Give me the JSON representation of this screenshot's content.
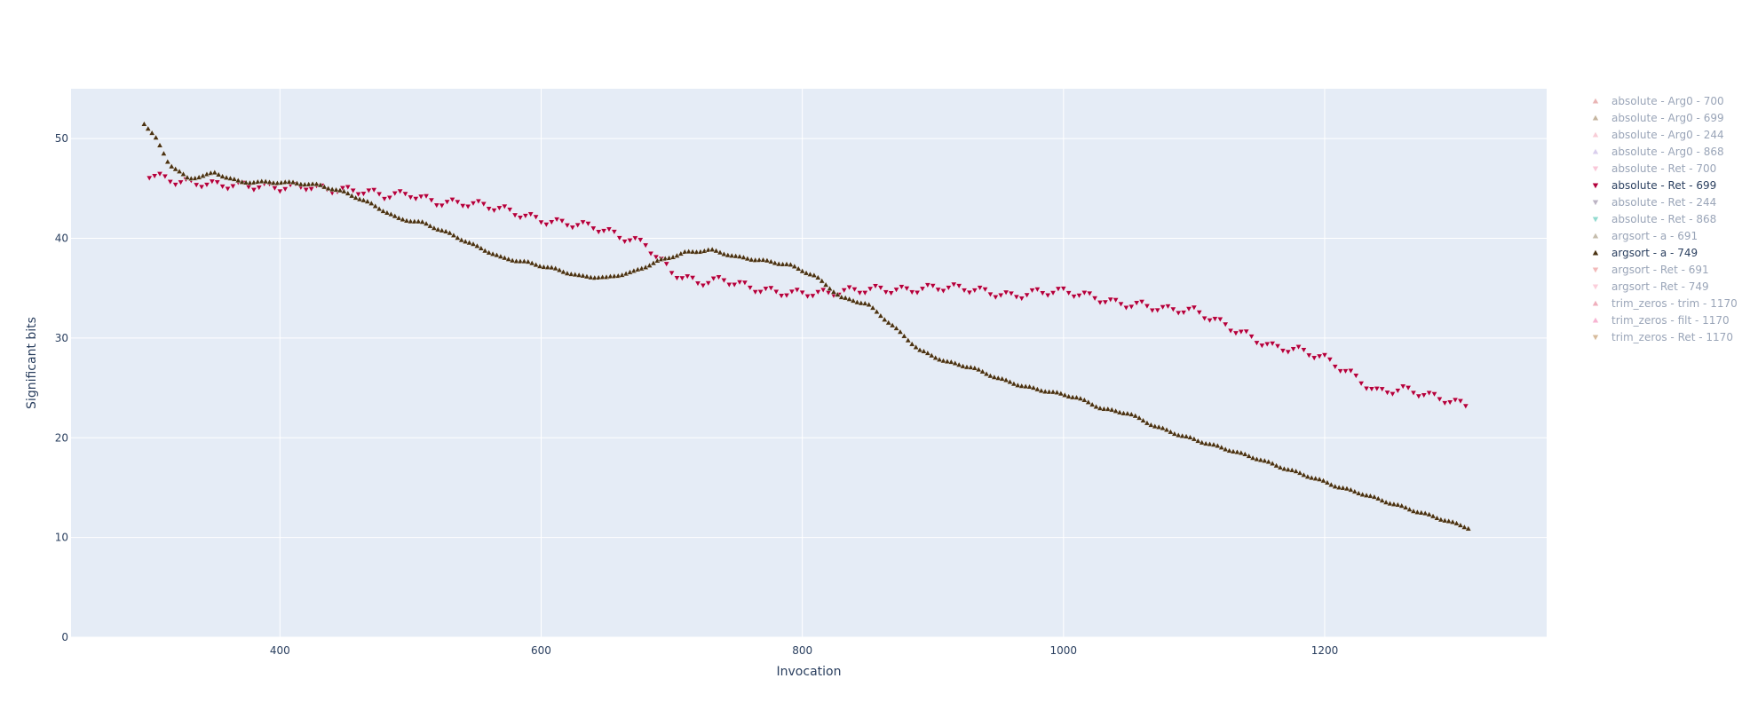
{
  "chart_data": {
    "type": "scatter",
    "xlabel": "Invocation",
    "ylabel": "Significant bits",
    "xlim": [
      240,
      1370
    ],
    "ylim": [
      0,
      55
    ],
    "xticks": [
      400,
      600,
      800,
      1000,
      1200
    ],
    "yticks": [
      0,
      10,
      20,
      30,
      40,
      50
    ],
    "grid": true,
    "plot_bg": "#E5ECF6",
    "legend_position": "right",
    "legend": [
      {
        "name": "absolute - Arg0 - 700",
        "symbol": "up",
        "color": "#d46a6a",
        "visible": false
      },
      {
        "name": "absolute - Arg0 - 699",
        "symbol": "up",
        "color": "#8c6b3f",
        "visible": false
      },
      {
        "name": "absolute - Arg0 - 244",
        "symbol": "up",
        "color": "#f29bb0",
        "visible": false
      },
      {
        "name": "absolute - Arg0 - 868",
        "symbol": "up",
        "color": "#b39ddb",
        "visible": false
      },
      {
        "name": "absolute - Ret - 700",
        "symbol": "down",
        "color": "#f48fb1",
        "visible": false
      },
      {
        "name": "absolute - Ret - 699",
        "symbol": "down",
        "color": "#b3003c",
        "visible": true
      },
      {
        "name": "absolute - Ret - 244",
        "symbol": "down",
        "color": "#7a6a8a",
        "visible": false
      },
      {
        "name": "absolute - Ret - 868",
        "symbol": "down",
        "color": "#26b5a0",
        "visible": false
      },
      {
        "name": "argsort - a - 691",
        "symbol": "up",
        "color": "#8c7a5a",
        "visible": false
      },
      {
        "name": "argsort - a - 749",
        "symbol": "up",
        "color": "#4a3212",
        "visible": true
      },
      {
        "name": "argsort - Ret - 691",
        "symbol": "down",
        "color": "#e57373",
        "visible": false
      },
      {
        "name": "argsort - Ret - 749",
        "symbol": "down",
        "color": "#f8a0b8",
        "visible": false
      },
      {
        "name": "trim_zeros - trim - 1170",
        "symbol": "up",
        "color": "#e0607a",
        "visible": false
      },
      {
        "name": "trim_zeros - filt - 1170",
        "symbol": "up",
        "color": "#f06aa6",
        "visible": false
      },
      {
        "name": "trim_zeros - Ret - 1170",
        "symbol": "down",
        "color": "#b07838",
        "visible": false
      }
    ],
    "series": [
      {
        "name": "absolute - Ret - 699",
        "symbol": "down",
        "color": "#b3003c",
        "x_start": 300,
        "x_end": 1310,
        "x_step": 4,
        "anchors_x": [
          300,
          320,
          340,
          360,
          380,
          400,
          420,
          440,
          460,
          480,
          500,
          520,
          540,
          560,
          580,
          600,
          620,
          640,
          660,
          680,
          700,
          720,
          740,
          760,
          780,
          800,
          820,
          840,
          860,
          880,
          900,
          920,
          940,
          960,
          980,
          1000,
          1020,
          1040,
          1060,
          1080,
          1100,
          1120,
          1140,
          1160,
          1180,
          1200,
          1220,
          1240,
          1260,
          1280,
          1300,
          1310
        ],
        "anchors_y": [
          46.2,
          45.8,
          45.7,
          45.3,
          45.0,
          45.0,
          45.4,
          45.0,
          44.6,
          44.1,
          44.5,
          43.8,
          43.5,
          43.0,
          42.5,
          42.0,
          41.6,
          41.0,
          40.0,
          39.5,
          36.8,
          35.5,
          35.6,
          35.0,
          34.8,
          34.6,
          34.3,
          34.6,
          35.0,
          35.0,
          35.0,
          34.8,
          34.6,
          34.4,
          34.7,
          34.5,
          34.0,
          33.6,
          33.5,
          32.8,
          32.5,
          31.5,
          30.5,
          29.2,
          28.6,
          27.8,
          26.5,
          24.8,
          24.8,
          24.0,
          23.5,
          23.3
        ]
      },
      {
        "name": "argsort - a - 749",
        "symbol": "up",
        "color": "#4a3212",
        "x_start": 296,
        "x_end": 1310,
        "x_step": 3,
        "anchors_x": [
          296,
          305,
          315,
          330,
          350,
          370,
          390,
          410,
          430,
          450,
          470,
          490,
          510,
          530,
          550,
          570,
          590,
          610,
          630,
          650,
          670,
          690,
          710,
          730,
          750,
          770,
          790,
          810,
          830,
          850,
          870,
          890,
          910,
          930,
          950,
          970,
          990,
          1010,
          1030,
          1050,
          1070,
          1090,
          1110,
          1130,
          1150,
          1170,
          1190,
          1210,
          1230,
          1250,
          1270,
          1290,
          1310
        ],
        "anchors_y": [
          51.5,
          50.0,
          47.5,
          46.0,
          46.6,
          45.6,
          45.6,
          45.6,
          45.4,
          44.6,
          43.4,
          42.0,
          41.6,
          40.5,
          39.2,
          38.0,
          37.6,
          37.0,
          36.2,
          36.0,
          36.6,
          37.8,
          38.6,
          38.8,
          38.1,
          37.8,
          37.4,
          36.2,
          34.0,
          33.4,
          31.2,
          28.8,
          27.6,
          27.0,
          26.0,
          25.2,
          24.6,
          24.0,
          22.9,
          22.5,
          21.2,
          20.2,
          19.4,
          18.7,
          17.9,
          16.9,
          16.0,
          15.1,
          14.4,
          13.5,
          12.6,
          11.8,
          11.0
        ]
      }
    ]
  }
}
